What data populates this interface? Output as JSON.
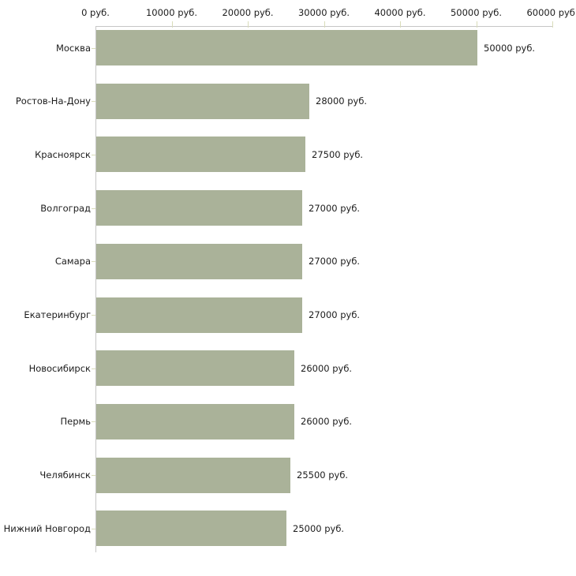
{
  "chart_data": {
    "type": "bar",
    "orientation": "horizontal",
    "title": "",
    "xlabel": "",
    "ylabel": "",
    "unit_suffix": " руб.",
    "categories": [
      "Москва",
      "Ростов-На-Дону",
      "Красноярск",
      "Волгоград",
      "Самара",
      "Екатеринбург",
      "Новосибирск",
      "Пермь",
      "Челябинск",
      "Нижний Новгород"
    ],
    "values": [
      50000,
      28000,
      27500,
      27000,
      27000,
      27000,
      26000,
      26000,
      25500,
      25000
    ],
    "value_labels": [
      "50000 руб.",
      "28000 руб.",
      "27500 руб.",
      "27000 руб.",
      "27000 руб.",
      "27000 руб.",
      "26000 руб.",
      "26000 руб.",
      "25500 руб.",
      "25000 руб."
    ],
    "x_axis": {
      "position": "top",
      "min": 0,
      "max": 60000,
      "tick_values": [
        0,
        10000,
        20000,
        30000,
        40000,
        50000,
        60000
      ],
      "tick_labels": [
        "0 руб.",
        "10000 руб.",
        "20000 руб.",
        "30000 руб.",
        "40000 руб.",
        "50000 руб.",
        "60000 руб."
      ]
    },
    "grid": false,
    "legend": false,
    "colors": {
      "bar": "#aab299",
      "axis_line": "#c6c6c6",
      "tick_mark": "#d9dcba",
      "text": "#1c1c1c",
      "background": "#ffffff"
    }
  }
}
